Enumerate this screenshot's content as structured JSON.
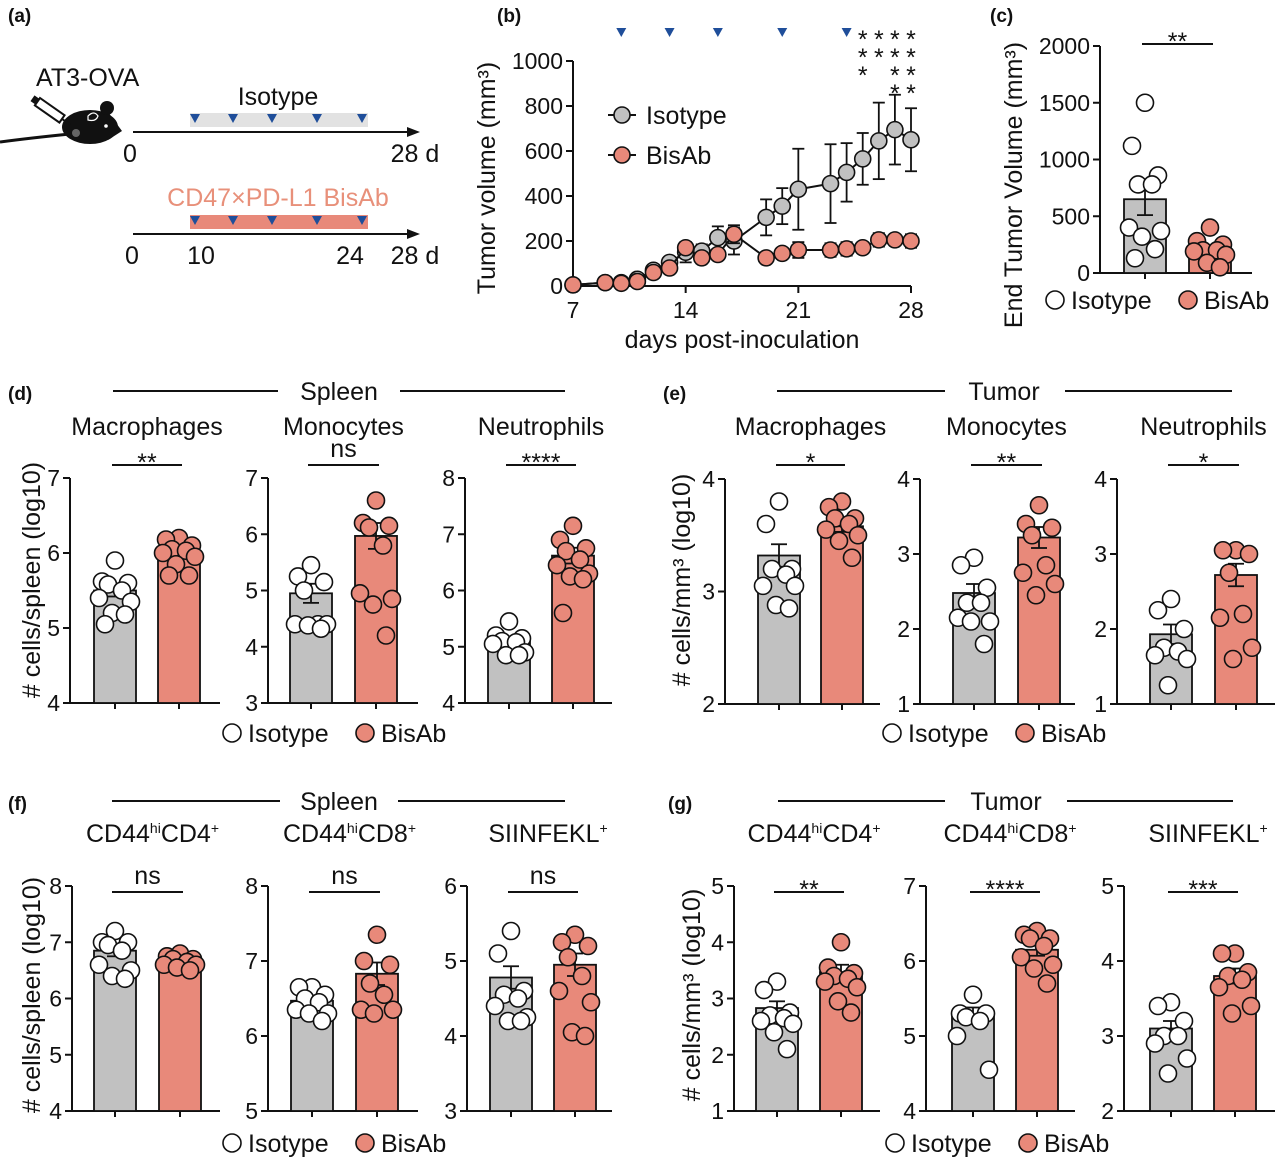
{
  "colors": {
    "isotype": "#c1c1c1",
    "bisab": "#e8897a",
    "bisab_text": "#e8907a",
    "dose_marker": "#1f4e9a",
    "isotype_bar": "#e2e2e2"
  },
  "panel_labels": {
    "a": "(a)",
    "b": "(b)",
    "c": "(c)",
    "d": "(d)",
    "e": "(e)",
    "f": "(f)",
    "g": "(g)"
  },
  "panel_a": {
    "model": "AT3-OVA",
    "isotype_label": "Isotype",
    "bisab_label": "CD47×PD-L1 BisAb",
    "isotype_axis": [
      "0",
      "28 d"
    ],
    "bisab_axis": [
      "0",
      "10",
      "24",
      "28 d"
    ],
    "icons": [
      "mouse-icon",
      "syringe-icon",
      "dose-triangle-icon"
    ]
  },
  "legend": {
    "isotype": "Isotype",
    "bisab": "BisAb"
  },
  "groups": {
    "d": {
      "header": "Spleen",
      "ylabel": "# cells/spleen (log10)"
    },
    "e": {
      "header": "Tumor",
      "ylabel": "# cells/mm³ (log10)"
    },
    "f": {
      "header": "Spleen",
      "ylabel": "# cells/spleen (log10)"
    },
    "g": {
      "header": "Tumor",
      "ylabel": "# cells/mm³ (log10)"
    }
  },
  "chart_data": [
    {
      "panel": "b",
      "type": "line",
      "xlabel": "days post-inoculation",
      "ylabel": "Tumor volume (mm³)",
      "xlim": [
        7,
        28
      ],
      "xticks": [
        "7",
        "14",
        "21",
        "28"
      ],
      "ylim": [
        0,
        1000
      ],
      "yticks": [
        "0",
        "200",
        "400",
        "600",
        "800",
        "1000"
      ],
      "dose_days": [
        10,
        13,
        16,
        20,
        24
      ],
      "significance": [
        {
          "day": 25,
          "label": "***"
        },
        {
          "day": 26,
          "label": "**"
        },
        {
          "day": 27,
          "label": "****"
        },
        {
          "day": 28,
          "label": "****"
        }
      ],
      "legend_position": "top-left",
      "series": [
        {
          "name": "Isotype",
          "x": [
            7,
            9,
            10,
            11,
            12,
            13,
            14,
            15,
            16,
            17,
            19,
            20,
            21,
            23,
            24,
            25,
            26,
            27,
            28
          ],
          "y": [
            5,
            15,
            15,
            30,
            70,
            105,
            150,
            155,
            215,
            200,
            305,
            355,
            430,
            455,
            505,
            565,
            645,
            695,
            650
          ],
          "sem": [
            3,
            8,
            8,
            12,
            15,
            20,
            45,
            30,
            50,
            60,
            80,
            80,
            180,
            175,
            130,
            115,
            170,
            155,
            140
          ]
        },
        {
          "name": "BisAb",
          "x": [
            7,
            9,
            10,
            11,
            12,
            13,
            14,
            15,
            16,
            17,
            19,
            20,
            21,
            23,
            24,
            25,
            26,
            27,
            28
          ],
          "y": [
            5,
            15,
            12,
            20,
            60,
            80,
            170,
            125,
            140,
            230,
            125,
            145,
            160,
            160,
            165,
            170,
            205,
            205,
            200
          ],
          "sem": [
            3,
            5,
            5,
            8,
            12,
            15,
            25,
            25,
            25,
            40,
            15,
            20,
            35,
            30,
            30,
            20,
            30,
            20,
            30
          ]
        }
      ]
    },
    {
      "panel": "c",
      "type": "bar",
      "ylabel": "End Tumor Volume (mm³)",
      "ylim": [
        0,
        2000
      ],
      "yticks": [
        "0",
        "500",
        "1000",
        "1500",
        "2000"
      ],
      "significance": "**",
      "series": [
        {
          "name": "Isotype",
          "mean": 650,
          "sem": 140,
          "points": [
            1500,
            1120,
            860,
            780,
            780,
            400,
            370,
            320,
            210,
            130
          ]
        },
        {
          "name": "BisAb",
          "mean": 200,
          "sem": 35,
          "points": [
            400,
            280,
            250,
            200,
            200,
            190,
            160,
            90,
            50
          ]
        }
      ]
    },
    {
      "panel": "d",
      "type": "bar",
      "title_parts": [
        "Macrophages"
      ],
      "ylim": [
        4,
        7
      ],
      "yticks": [
        "4",
        "5",
        "6",
        "7"
      ],
      "significance": "**",
      "series": [
        {
          "name": "Isotype",
          "mean": 5.5,
          "sem": 0.08,
          "points": [
            5.9,
            5.62,
            5.6,
            5.58,
            5.5,
            5.4,
            5.35,
            5.2,
            5.18,
            5.05
          ]
        },
        {
          "name": "BisAb",
          "mean": 6.0,
          "sem": 0.05,
          "points": [
            6.2,
            6.18,
            6.1,
            6.05,
            6.03,
            6.0,
            5.95,
            5.85,
            5.7,
            5.7
          ]
        }
      ]
    },
    {
      "panel": "d",
      "type": "bar",
      "title_parts": [
        "Monocytes"
      ],
      "ylim": [
        3,
        7
      ],
      "yticks": [
        "3",
        "4",
        "5",
        "6",
        "7"
      ],
      "significance": "ns",
      "series": [
        {
          "name": "Isotype",
          "mean": 4.95,
          "sem": 0.17,
          "points": [
            5.45,
            5.25,
            5.15,
            5.0,
            4.4,
            4.4,
            4.4,
            4.38,
            4.32
          ]
        },
        {
          "name": "BisAb",
          "mean": 5.97,
          "sem": 0.23,
          "points": [
            6.6,
            6.2,
            6.15,
            6.12,
            5.8,
            4.95,
            4.85,
            4.75,
            4.2
          ]
        }
      ]
    },
    {
      "panel": "d",
      "type": "bar",
      "title_parts": [
        "Neutrophils"
      ],
      "ylim": [
        4,
        8
      ],
      "yticks": [
        "4",
        "5",
        "6",
        "7",
        "8"
      ],
      "significance": "****",
      "series": [
        {
          "name": "Isotype",
          "mean": 5.1,
          "sem": 0.06,
          "points": [
            5.45,
            5.2,
            5.15,
            5.1,
            5.08,
            5.05,
            4.9,
            4.85,
            4.85
          ]
        },
        {
          "name": "BisAb",
          "mean": 6.62,
          "sem": 0.14,
          "points": [
            7.15,
            6.9,
            6.75,
            6.7,
            6.55,
            6.45,
            6.3,
            6.25,
            6.2,
            5.6
          ]
        }
      ]
    },
    {
      "panel": "e",
      "type": "bar",
      "title_parts": [
        "Macrophages"
      ],
      "ylim": [
        2,
        4
      ],
      "yticks": [
        "2",
        "3",
        "4"
      ],
      "significance": "*",
      "series": [
        {
          "name": "Isotype",
          "mean": 3.32,
          "sem": 0.1,
          "points": [
            3.8,
            3.6,
            3.2,
            3.2,
            3.15,
            3.05,
            3.05,
            2.88,
            2.85
          ]
        },
        {
          "name": "BisAb",
          "mean": 3.58,
          "sem": 0.05,
          "points": [
            3.8,
            3.75,
            3.65,
            3.65,
            3.6,
            3.55,
            3.5,
            3.45,
            3.3
          ]
        }
      ]
    },
    {
      "panel": "e",
      "type": "bar",
      "title_parts": [
        "Monocytes"
      ],
      "ylim": [
        1,
        4
      ],
      "yticks": [
        "1",
        "2",
        "3",
        "4"
      ],
      "significance": "**",
      "series": [
        {
          "name": "Isotype",
          "mean": 2.48,
          "sem": 0.12,
          "points": [
            2.95,
            2.85,
            2.55,
            2.35,
            2.35,
            2.15,
            2.1,
            2.1,
            1.8
          ]
        },
        {
          "name": "BisAb",
          "mean": 3.22,
          "sem": 0.14,
          "points": [
            3.65,
            3.4,
            3.35,
            3.25,
            2.85,
            2.75,
            2.6,
            2.45
          ]
        }
      ]
    },
    {
      "panel": "e",
      "type": "bar",
      "title_parts": [
        "Neutrophils"
      ],
      "ylim": [
        1,
        4
      ],
      "yticks": [
        "1",
        "2",
        "3",
        "4"
      ],
      "significance": "*",
      "series": [
        {
          "name": "Isotype",
          "mean": 1.93,
          "sem": 0.13,
          "points": [
            2.4,
            2.25,
            2.0,
            1.75,
            1.7,
            1.65,
            1.6,
            1.25
          ]
        },
        {
          "name": "BisAb",
          "mean": 2.72,
          "sem": 0.15,
          "points": [
            3.05,
            3.05,
            3.0,
            2.75,
            2.2,
            2.15,
            1.75,
            1.6
          ]
        }
      ]
    },
    {
      "panel": "f",
      "type": "bar",
      "title_parts": [
        "CD44",
        "hi",
        "CD4",
        "+"
      ],
      "ylim": [
        4,
        8
      ],
      "yticks": [
        "4",
        "5",
        "6",
        "7",
        "8"
      ],
      "significance": "ns",
      "series": [
        {
          "name": "Isotype",
          "mean": 6.85,
          "sem": 0.1,
          "points": [
            7.2,
            7.0,
            7.0,
            6.95,
            6.85,
            6.6,
            6.5,
            6.4,
            6.35
          ]
        },
        {
          "name": "BisAb",
          "mean": 6.65,
          "sem": 0.04,
          "points": [
            6.8,
            6.75,
            6.7,
            6.7,
            6.65,
            6.6,
            6.6,
            6.55,
            6.5
          ]
        }
      ]
    },
    {
      "panel": "f",
      "type": "bar",
      "title_parts": [
        "CD44",
        "hi",
        "CD8",
        "+"
      ],
      "ylim": [
        5,
        8
      ],
      "yticks": [
        "5",
        "6",
        "7",
        "8"
      ],
      "significance": "ns",
      "series": [
        {
          "name": "Isotype",
          "mean": 6.47,
          "sem": 0.05,
          "points": [
            6.65,
            6.65,
            6.55,
            6.5,
            6.45,
            6.35,
            6.3,
            6.3,
            6.2
          ]
        },
        {
          "name": "BisAb",
          "mean": 6.83,
          "sem": 0.15,
          "points": [
            7.35,
            7.0,
            6.95,
            6.7,
            6.55,
            6.35,
            6.35,
            6.3
          ]
        }
      ]
    },
    {
      "panel": "f",
      "type": "bar",
      "title_parts": [
        "SIINFEKL",
        "+"
      ],
      "ylim": [
        3,
        6
      ],
      "yticks": [
        "3",
        "4",
        "5",
        "6"
      ],
      "significance": "ns",
      "series": [
        {
          "name": "Isotype",
          "mean": 4.78,
          "sem": 0.15,
          "points": [
            5.4,
            5.1,
            4.6,
            4.55,
            4.5,
            4.4,
            4.25,
            4.2,
            4.2
          ]
        },
        {
          "name": "BisAb",
          "mean": 4.95,
          "sem": 0.15,
          "points": [
            5.35,
            5.25,
            5.2,
            5.05,
            4.8,
            4.6,
            4.45,
            4.05,
            4.0
          ]
        }
      ]
    },
    {
      "panel": "g",
      "type": "bar",
      "title_parts": [
        "CD44",
        "hi",
        "CD4",
        "+"
      ],
      "ylim": [
        1,
        5
      ],
      "yticks": [
        "1",
        "2",
        "3",
        "4",
        "5"
      ],
      "significance": "**",
      "series": [
        {
          "name": "Isotype",
          "mean": 2.83,
          "sem": 0.12,
          "points": [
            3.3,
            3.15,
            2.75,
            2.7,
            2.65,
            2.6,
            2.55,
            2.4,
            2.1
          ]
        },
        {
          "name": "BisAb",
          "mean": 3.47,
          "sem": 0.13,
          "points": [
            4.0,
            3.55,
            3.45,
            3.4,
            3.35,
            3.3,
            3.2,
            2.95,
            2.75
          ]
        }
      ]
    },
    {
      "panel": "g",
      "type": "bar",
      "title_parts": [
        "CD44",
        "hi",
        "CD8",
        "+"
      ],
      "ylim": [
        4,
        7
      ],
      "yticks": [
        "4",
        "5",
        "6",
        "7"
      ],
      "significance": "****",
      "series": [
        {
          "name": "Isotype",
          "mean": 5.28,
          "sem": 0.1,
          "points": [
            5.55,
            5.3,
            5.3,
            5.25,
            5.2,
            5.0,
            4.55
          ]
        },
        {
          "name": "BisAb",
          "mean": 6.15,
          "sem": 0.08,
          "points": [
            6.4,
            6.35,
            6.3,
            6.3,
            6.2,
            6.05,
            5.95,
            5.9,
            5.7
          ]
        }
      ]
    },
    {
      "panel": "g",
      "type": "bar",
      "title_parts": [
        "SIINFEKL",
        "+"
      ],
      "ylim": [
        2,
        5
      ],
      "yticks": [
        "2",
        "3",
        "4",
        "5"
      ],
      "significance": "***",
      "series": [
        {
          "name": "Isotype",
          "mean": 3.1,
          "sem": 0.1,
          "points": [
            3.45,
            3.4,
            3.2,
            3.0,
            3.0,
            2.9,
            2.7,
            2.5
          ]
        },
        {
          "name": "BisAb",
          "mean": 3.8,
          "sem": 0.1,
          "points": [
            4.1,
            4.1,
            3.85,
            3.8,
            3.75,
            3.65,
            3.4,
            3.3
          ]
        }
      ]
    }
  ]
}
